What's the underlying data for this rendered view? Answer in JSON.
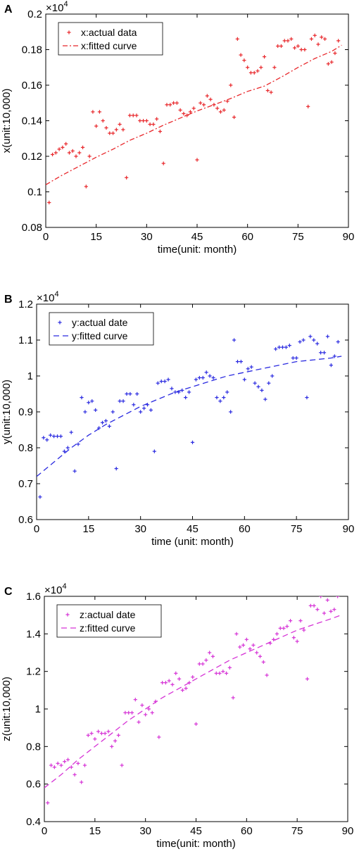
{
  "chart_data": [
    {
      "panel": "A",
      "type": "scatter",
      "xlabel": "time(unit: month)",
      "ylabel": "x(unit:10,000)",
      "y_exponent_base": "×10",
      "y_exponent_power": "4",
      "xlim": [
        0,
        90
      ],
      "ylim": [
        0.08,
        0.2
      ],
      "xticks": [
        0,
        15,
        30,
        45,
        60,
        75,
        90
      ],
      "yticks": [
        0.08,
        0.1,
        0.12,
        0.14,
        0.16,
        0.18,
        0.2
      ],
      "ytick_labels": [
        "0.08",
        "0.1",
        "0.12",
        "0.14",
        "0.16",
        "0.18",
        "0.2"
      ],
      "legend_position": "top-left",
      "color": "#e8262a",
      "series": [
        {
          "name": "x:actual data",
          "kind": "points",
          "x": [
            1,
            2,
            3,
            4,
            5,
            6,
            7,
            8,
            9,
            10,
            11,
            12,
            13,
            14,
            15,
            16,
            17,
            18,
            19,
            20,
            21,
            22,
            23,
            24,
            25,
            26,
            27,
            28,
            29,
            30,
            31,
            32,
            33,
            34,
            35,
            36,
            37,
            38,
            39,
            40,
            41,
            42,
            43,
            44,
            45,
            46,
            47,
            48,
            49,
            50,
            51,
            52,
            53,
            54,
            55,
            56,
            57,
            58,
            59,
            60,
            61,
            62,
            63,
            64,
            65,
            66,
            67,
            68,
            69,
            70,
            71,
            72,
            73,
            74,
            75,
            76,
            77,
            78,
            79,
            80,
            81,
            82,
            83,
            84,
            85,
            86,
            87
          ],
          "y": [
            0.094,
            0.121,
            0.122,
            0.124,
            0.125,
            0.127,
            0.122,
            0.123,
            0.12,
            0.122,
            0.125,
            0.103,
            0.12,
            0.145,
            0.137,
            0.145,
            0.14,
            0.136,
            0.133,
            0.133,
            0.135,
            0.138,
            0.135,
            0.108,
            0.143,
            0.143,
            0.143,
            0.14,
            0.14,
            0.14,
            0.138,
            0.138,
            0.141,
            0.134,
            0.116,
            0.149,
            0.149,
            0.15,
            0.15,
            0.146,
            0.144,
            0.143,
            0.145,
            0.147,
            0.118,
            0.15,
            0.149,
            0.154,
            0.152,
            0.149,
            0.147,
            0.145,
            0.146,
            0.151,
            0.16,
            0.142,
            0.186,
            0.177,
            0.174,
            0.17,
            0.167,
            0.167,
            0.168,
            0.17,
            0.176,
            0.157,
            0.156,
            0.17,
            0.182,
            0.182,
            0.185,
            0.185,
            0.186,
            0.181,
            0.182,
            0.18,
            0.18,
            0.148,
            0.186,
            0.188,
            0.183,
            0.187,
            0.186,
            0.172,
            0.173,
            0.178,
            0.185
          ]
        },
        {
          "name": "x:fitted curve",
          "kind": "curve",
          "style": "dashdot",
          "x": [
            0,
            5,
            10,
            15,
            20,
            25,
            30,
            35,
            40,
            45,
            50,
            55,
            60,
            65,
            70,
            75,
            80,
            85,
            88
          ],
          "y": [
            0.104,
            0.1095,
            0.1145,
            0.1195,
            0.124,
            0.129,
            0.133,
            0.1375,
            0.1415,
            0.1455,
            0.149,
            0.1525,
            0.1565,
            0.1595,
            0.1645,
            0.17,
            0.175,
            0.179,
            0.1825
          ]
        }
      ]
    },
    {
      "panel": "B",
      "type": "scatter",
      "xlabel": "time (unit: month)",
      "ylabel": "y(unit:10,000)",
      "y_exponent_base": "×10",
      "y_exponent_power": "4",
      "xlim": [
        0,
        90
      ],
      "ylim": [
        0.6,
        1.2
      ],
      "xticks": [
        0,
        15,
        30,
        45,
        60,
        75,
        90
      ],
      "yticks": [
        0.6,
        0.7,
        0.8,
        0.9,
        1.0,
        1.1,
        1.2
      ],
      "ytick_labels": [
        "0.6",
        "0.7",
        "0.8",
        "0.9",
        "1",
        "1.1",
        "1.2"
      ],
      "legend_position": "top-left",
      "color": "#2a2ae0",
      "series": [
        {
          "name": "y:actual date",
          "kind": "points",
          "x": [
            1,
            2,
            3,
            4,
            5,
            6,
            7,
            8,
            9,
            10,
            11,
            12,
            13,
            14,
            15,
            16,
            17,
            18,
            19,
            20,
            21,
            22,
            23,
            24,
            25,
            26,
            27,
            28,
            29,
            30,
            31,
            32,
            33,
            34,
            35,
            36,
            37,
            38,
            39,
            40,
            41,
            42,
            43,
            44,
            45,
            46,
            47,
            48,
            49,
            50,
            51,
            52,
            53,
            54,
            55,
            56,
            57,
            58,
            59,
            60,
            61,
            62,
            63,
            64,
            65,
            66,
            67,
            68,
            69,
            70,
            71,
            72,
            73,
            74,
            75,
            76,
            77,
            78,
            79,
            80,
            81,
            82,
            83,
            84,
            85,
            86,
            87
          ],
          "y": [
            0.663,
            0.828,
            0.822,
            0.835,
            0.832,
            0.832,
            0.832,
            0.79,
            0.8,
            0.843,
            0.735,
            0.81,
            0.94,
            0.9,
            0.926,
            0.93,
            0.905,
            0.855,
            0.87,
            0.875,
            0.86,
            0.9,
            0.742,
            0.93,
            0.93,
            0.95,
            0.95,
            0.92,
            0.95,
            0.9,
            0.91,
            0.92,
            0.905,
            0.79,
            0.98,
            0.985,
            0.985,
            0.99,
            0.965,
            0.955,
            0.955,
            0.96,
            0.94,
            0.955,
            0.815,
            0.99,
            0.995,
            0.995,
            1.01,
            1.0,
            0.995,
            0.94,
            0.93,
            0.94,
            0.955,
            0.9,
            1.1,
            1.04,
            1.04,
            0.99,
            1.02,
            1.025,
            0.98,
            0.97,
            0.96,
            0.935,
            0.98,
            1.0,
            1.075,
            1.08,
            1.08,
            1.08,
            1.085,
            1.05,
            1.05,
            1.095,
            1.1,
            0.94,
            1.11,
            1.1,
            1.09,
            1.065,
            1.065,
            1.11,
            1.03,
            1.055,
            1.095
          ]
        },
        {
          "name": "y:fitted curve",
          "kind": "curve",
          "style": "dashed",
          "x": [
            0,
            5,
            10,
            15,
            20,
            25,
            30,
            35,
            40,
            45,
            50,
            55,
            60,
            65,
            70,
            75,
            80,
            85,
            88
          ],
          "y": [
            0.72,
            0.76,
            0.8,
            0.835,
            0.865,
            0.89,
            0.915,
            0.935,
            0.955,
            0.97,
            0.985,
            1.0,
            1.01,
            1.02,
            1.03,
            1.04,
            1.045,
            1.05,
            1.055
          ]
        }
      ]
    },
    {
      "panel": "C",
      "type": "scatter",
      "xlabel": "time(unit: month)",
      "ylabel": "z(unit:10,000)",
      "y_exponent_base": "×10",
      "y_exponent_power": "4",
      "xlim": [
        0,
        90
      ],
      "ylim": [
        0.4,
        1.6
      ],
      "xticks": [
        0,
        15,
        30,
        45,
        60,
        75,
        90
      ],
      "yticks": [
        0.4,
        0.6,
        0.8,
        1.0,
        1.2,
        1.4,
        1.6
      ],
      "ytick_labels": [
        "0.4",
        "0.6",
        "0.8",
        "1",
        "1.2",
        "1.4",
        "1.6"
      ],
      "legend_position": "top-left",
      "color": "#d633d6",
      "series": [
        {
          "name": "z:actual date",
          "kind": "points",
          "x": [
            1,
            2,
            3,
            4,
            5,
            6,
            7,
            8,
            9,
            10,
            11,
            12,
            13,
            14,
            15,
            16,
            17,
            18,
            19,
            20,
            21,
            22,
            23,
            24,
            25,
            26,
            27,
            28,
            29,
            30,
            31,
            32,
            33,
            34,
            35,
            36,
            37,
            38,
            39,
            40,
            41,
            42,
            43,
            44,
            45,
            46,
            47,
            48,
            49,
            50,
            51,
            52,
            53,
            54,
            55,
            56,
            57,
            58,
            59,
            60,
            61,
            62,
            63,
            64,
            65,
            66,
            67,
            68,
            69,
            70,
            71,
            72,
            73,
            74,
            75,
            76,
            77,
            78,
            79,
            80,
            81,
            82,
            83,
            84,
            85,
            86,
            87
          ],
          "y": [
            0.5,
            0.7,
            0.69,
            0.71,
            0.7,
            0.72,
            0.73,
            0.69,
            0.65,
            0.71,
            0.61,
            0.7,
            0.86,
            0.87,
            0.84,
            0.88,
            0.87,
            0.87,
            0.88,
            0.8,
            0.83,
            0.86,
            0.7,
            0.98,
            0.98,
            0.98,
            1.05,
            0.93,
            1.02,
            0.97,
            1.0,
            0.98,
            1.04,
            0.85,
            1.14,
            1.14,
            1.15,
            1.13,
            1.19,
            1.16,
            1.1,
            1.11,
            1.14,
            1.17,
            0.92,
            1.24,
            1.24,
            1.26,
            1.3,
            1.28,
            1.19,
            1.19,
            1.2,
            1.19,
            1.22,
            1.06,
            1.4,
            1.33,
            1.34,
            1.37,
            1.32,
            1.34,
            1.3,
            1.28,
            1.25,
            1.18,
            1.35,
            1.37,
            1.4,
            1.43,
            1.43,
            1.44,
            1.47,
            1.38,
            1.36,
            1.47,
            1.42,
            1.16,
            1.55,
            1.55,
            1.53,
            1.6,
            1.51,
            1.58,
            1.52,
            1.53,
            1.6
          ]
        },
        {
          "name": "z:fitted curve",
          "kind": "curve",
          "style": "dashed",
          "x": [
            0,
            5,
            10,
            15,
            20,
            25,
            30,
            35,
            40,
            45,
            50,
            55,
            60,
            65,
            70,
            75,
            80,
            85,
            88
          ],
          "y": [
            0.58,
            0.65,
            0.73,
            0.8,
            0.87,
            0.94,
            1.0,
            1.06,
            1.11,
            1.16,
            1.21,
            1.26,
            1.3,
            1.34,
            1.38,
            1.42,
            1.45,
            1.48,
            1.5
          ]
        }
      ]
    }
  ]
}
